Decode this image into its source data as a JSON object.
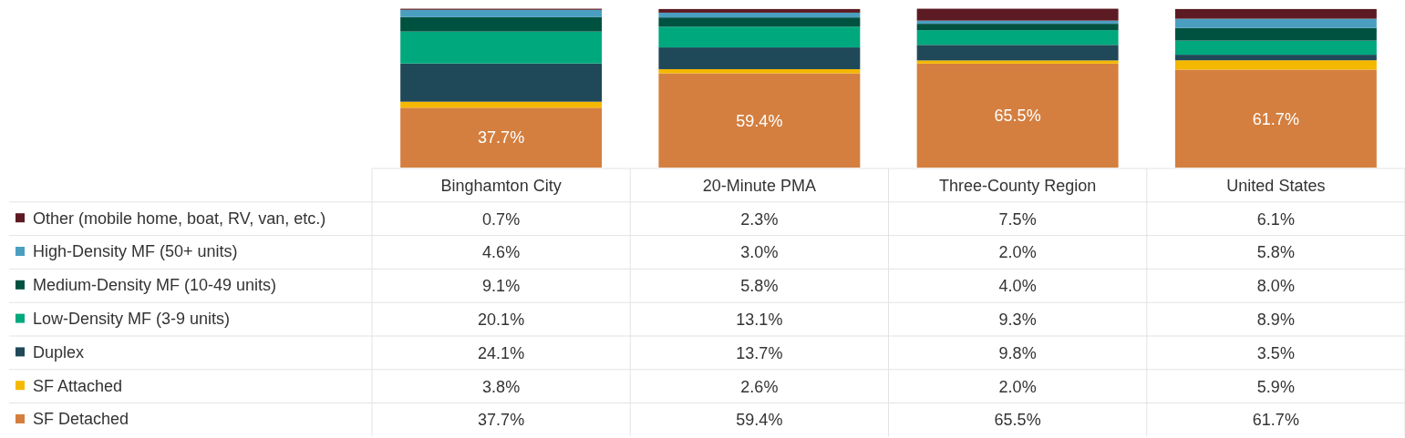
{
  "chart_data": {
    "type": "bar",
    "stacked": true,
    "categories": [
      "Binghamton City",
      "20-Minute PMA",
      "Three-County Region",
      "United States"
    ],
    "ylim": [
      0,
      101
    ],
    "tick_labels": "x",
    "legend": "bottom left",
    "series": [
      {
        "name": "SF Detached",
        "color": "#d47f3f",
        "values": [
          37.7,
          59.4,
          65.5,
          61.7
        ],
        "value_labels": [
          "37.7%",
          "59.4%",
          "65.5%",
          "61.7%"
        ]
      },
      {
        "name": "SF Attached",
        "color": "#f5b800",
        "values": [
          3.8,
          2.6,
          2.0,
          5.9
        ],
        "value_labels": [
          "3.8%",
          "2.6%",
          "2.0%",
          "5.9%"
        ]
      },
      {
        "name": "Duplex",
        "color": "#1f4858",
        "values": [
          24.1,
          13.7,
          9.8,
          3.5
        ],
        "value_labels": [
          "24.1%",
          "13.7%",
          "9.8%",
          "3.5%"
        ]
      },
      {
        "name": "Low-Density MF (3-9 units)",
        "color": "#00a87e",
        "values": [
          20.1,
          13.1,
          9.3,
          8.9
        ],
        "value_labels": [
          "20.1%",
          "13.1%",
          "9.3%",
          "8.9%"
        ]
      },
      {
        "name": "Medium-Density MF (10-49 units)",
        "color": "#005240",
        "values": [
          9.1,
          5.8,
          4.0,
          8.0
        ],
        "value_labels": [
          "9.1%",
          "5.8%",
          "4.0%",
          "8.0%"
        ]
      },
      {
        "name": "High-Density MF (50+ units)",
        "color": "#4a9fc0",
        "values": [
          4.6,
          3.0,
          2.0,
          5.8
        ],
        "value_labels": [
          "4.6%",
          "3.0%",
          "2.0%",
          "5.8%"
        ]
      },
      {
        "name": "Other (mobile home, boat, RV, van, etc.)",
        "color": "#5c1a22",
        "values": [
          0.7,
          2.3,
          7.5,
          6.1
        ],
        "value_labels": [
          "0.7%",
          "2.3%",
          "7.5%",
          "6.1%"
        ]
      }
    ],
    "annotations": [
      "37.7%",
      "59.4%",
      "65.5%",
      "61.7%"
    ]
  }
}
